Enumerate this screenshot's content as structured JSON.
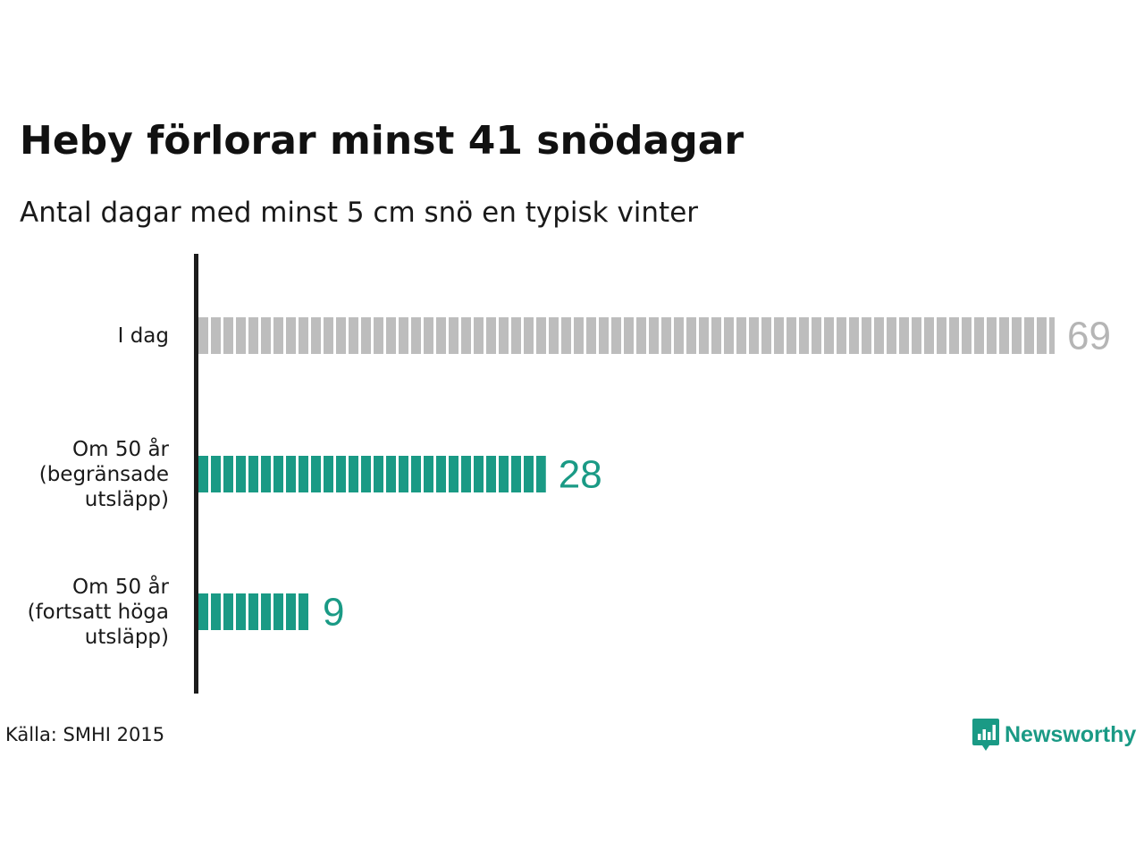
{
  "chart_data": {
    "type": "bar",
    "orientation": "horizontal",
    "title": "Heby förlorar minst 41 snödagar",
    "subtitle": "Antal dagar med minst 5 cm snö en typisk vinter",
    "categories": [
      [
        "I dag"
      ],
      [
        "Om 50 år",
        "(begränsade",
        "utsläpp)"
      ],
      [
        "Om 50 år",
        "(fortsatt höga",
        "utsläpp)"
      ]
    ],
    "values": [
      69,
      28,
      9
    ],
    "value_labels": [
      "69",
      "28",
      "9"
    ],
    "colors": [
      "#bdbdbd",
      "#1a9a85",
      "#1a9a85"
    ],
    "label_colors": [
      "#b5b5b5",
      "#1a9a85",
      "#1a9a85"
    ],
    "xlim": [
      0,
      69
    ]
  },
  "source": "Källa: SMHI 2015",
  "brand": {
    "name": "Newsworthy",
    "icon": "newsworthy-logo-icon",
    "color": "#1a9a85"
  }
}
